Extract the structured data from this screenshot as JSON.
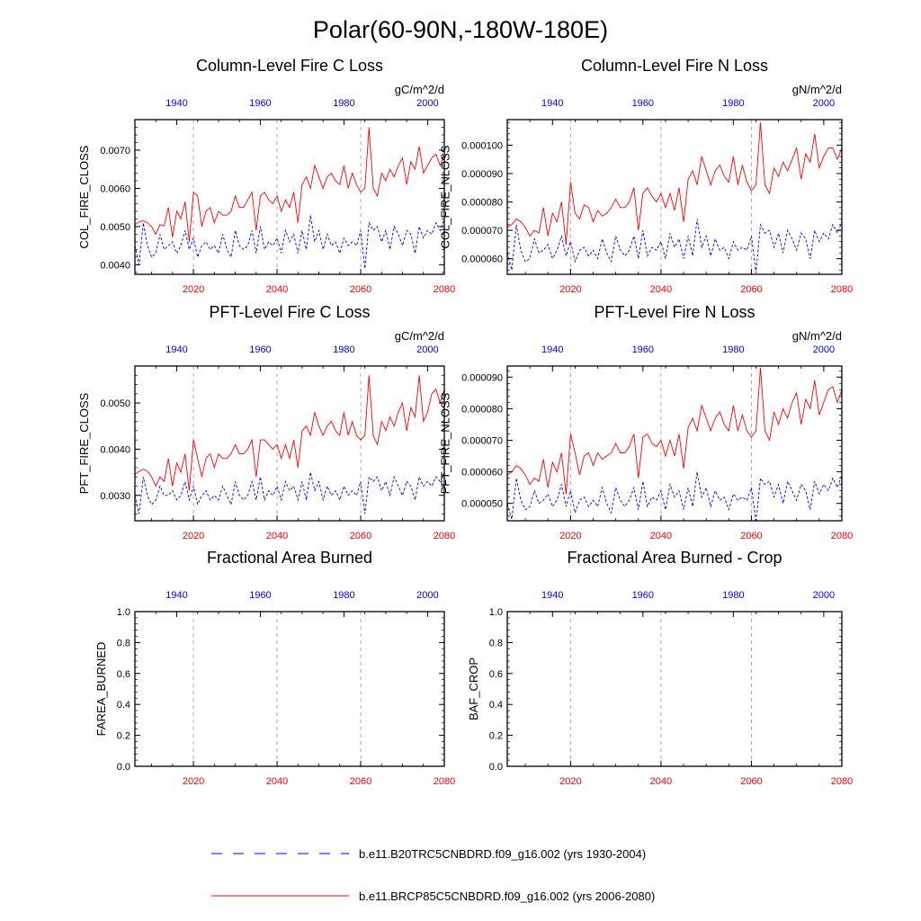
{
  "figure_title": "Polar(60-90N,-180W-180E)",
  "colors": {
    "control": "#0000ff",
    "future": "#ff0000",
    "axis": "#000000",
    "grid": "#aaaaaa"
  },
  "legend": [
    {
      "label": "b.e11.B20TRC5CNBDRD.f09_g16.002 (yrs 1930-2004)",
      "color": "#0000ff",
      "style": "dashed"
    },
    {
      "label": "b.e11.BRCP85C5CNBDRD.f09_g16.002 (yrs 2006-2080)",
      "color": "#ff0000",
      "style": "solid"
    }
  ],
  "chart_data": [
    {
      "type": "line",
      "title": "Column-Level Fire C Loss",
      "ylabel": "COL_FIRE_CLOSS",
      "units": "gC/m^2/d",
      "ylim": [
        0.00375,
        0.0078
      ],
      "yticks": [
        0.004,
        0.005,
        0.006,
        0.007
      ],
      "ytick_labels": [
        "0.0040",
        "0.0050",
        "0.0060",
        "0.0070"
      ],
      "bottom_axis": {
        "xlim": [
          2006,
          2080
        ],
        "ticks": [
          2020,
          2040,
          2060,
          2080
        ],
        "color": "#ff0000"
      },
      "top_axis": {
        "xlim": [
          1930,
          2004
        ],
        "ticks": [
          1940,
          1960,
          1980,
          2000
        ],
        "color": "#0000ff"
      },
      "series": [
        {
          "x_start": 2006,
          "color": "#ff0000",
          "dash": "solid",
          "values": [
            0.00505,
            0.00512,
            0.00515,
            0.0051,
            0.005,
            0.0048,
            0.00505,
            0.00502,
            0.0055,
            0.00472,
            0.0054,
            0.0052,
            0.00565,
            0.0046,
            0.0059,
            0.0058,
            0.005,
            0.0054,
            0.0055,
            0.0051,
            0.0054,
            0.0053,
            0.0053,
            0.0054,
            0.0058,
            0.0055,
            0.0055,
            0.0057,
            0.0059,
            0.0049,
            0.0058,
            0.0059,
            0.0057,
            0.0056,
            0.0058,
            0.0054,
            0.0057,
            0.0055,
            0.0059,
            0.0051,
            0.0061,
            0.0063,
            0.006,
            0.0066,
            0.0063,
            0.006,
            0.0063,
            0.0064,
            0.0062,
            0.0061,
            0.0066,
            0.006,
            0.0064,
            0.0061,
            0.0059,
            0.006,
            0.0076,
            0.006,
            0.0058,
            0.0064,
            0.0062,
            0.0065,
            0.0063,
            0.0066,
            0.0068,
            0.0061,
            0.0067,
            0.0065,
            0.0071,
            0.0064,
            0.0066,
            0.0068,
            0.0069,
            0.0066,
            0.0069
          ]
        },
        {
          "x_start": 1930,
          "color": "#0000ff",
          "dash": "dashed",
          "values": [
            0.0045,
            0.004,
            0.0051,
            0.0045,
            0.0042,
            0.0043,
            0.0048,
            0.0044,
            0.0045,
            0.0046,
            0.0043,
            0.0045,
            0.0049,
            0.0044,
            0.0047,
            0.0042,
            0.0045,
            0.0046,
            0.0044,
            0.0045,
            0.0043,
            0.0048,
            0.0044,
            0.0042,
            0.0049,
            0.0045,
            0.0044,
            0.0045,
            0.0049,
            0.0043,
            0.005,
            0.0044,
            0.0046,
            0.0045,
            0.0047,
            0.0043,
            0.0049,
            0.0046,
            0.0048,
            0.0043,
            0.0049,
            0.0044,
            0.0053,
            0.0046,
            0.0049,
            0.0044,
            0.0048,
            0.0045,
            0.0046,
            0.0043,
            0.0047,
            0.0045,
            0.0046,
            0.0045,
            0.0049,
            0.0039,
            0.0051,
            0.0049,
            0.005,
            0.0046,
            0.0049,
            0.0044,
            0.005,
            0.0048,
            0.0045,
            0.0049,
            0.0048,
            0.0043,
            0.005,
            0.0047,
            0.0049,
            0.0048,
            0.0051,
            0.0049,
            0.0052
          ]
        }
      ]
    },
    {
      "type": "line",
      "title": "Column-Level Fire N Loss",
      "ylabel": "COL_FIRE_NLOSS",
      "units": "gN/m^2/d",
      "ylim": [
        5.45e-05,
        0.000109
      ],
      "yticks": [
        6e-05,
        7e-05,
        8e-05,
        9e-05,
        0.0001
      ],
      "ytick_labels": [
        "0.000060",
        "0.000070",
        "0.000080",
        "0.000090",
        "0.000100"
      ],
      "bottom_axis": {
        "xlim": [
          2006,
          2080
        ],
        "ticks": [
          2020,
          2040,
          2060,
          2080
        ],
        "color": "#ff0000"
      },
      "top_axis": {
        "xlim": [
          1930,
          2004
        ],
        "ticks": [
          1940,
          1960,
          1980,
          2000
        ],
        "color": "#0000ff"
      },
      "series": [
        {
          "x_start": 2006,
          "color": "#ff0000",
          "dash": "solid",
          "values": [
            7.1e-05,
            7.2e-05,
            7.4e-05,
            7.3e-05,
            7.1e-05,
            6.8e-05,
            7e-05,
            6.9e-05,
            7.8e-05,
            6.8e-05,
            7.6e-05,
            7.3e-05,
            8e-05,
            6.5e-05,
            8.7e-05,
            7.6e-05,
            7.4e-05,
            7.9e-05,
            7.8e-05,
            7.3e-05,
            7.7e-05,
            7.5e-05,
            7.6e-05,
            7.8e-05,
            8.1e-05,
            7.8e-05,
            7.8e-05,
            8e-05,
            8.5e-05,
            7e-05,
            8.3e-05,
            8.5e-05,
            8.2e-05,
            8e-05,
            8.3e-05,
            7.8e-05,
            8.3e-05,
            7.7e-05,
            8.5e-05,
            7.3e-05,
            8.8e-05,
            9.1e-05,
            8.6e-05,
            9.6e-05,
            9.1e-05,
            8.6e-05,
            9.1e-05,
            9.3e-05,
            8.9e-05,
            8.7e-05,
            9.6e-05,
            8.6e-05,
            9.3e-05,
            8.7e-05,
            8.4e-05,
            8.6e-05,
            0.000108,
            8.6e-05,
            8.3e-05,
            9.2e-05,
            8.9e-05,
            9.4e-05,
            9.1e-05,
            9.5e-05,
            9.9e-05,
            8.8e-05,
            9.7e-05,
            9.4e-05,
            0.000104,
            9.2e-05,
            9.6e-05,
            9.9e-05,
            9.9e-05,
            9.5e-05,
            9.9e-05
          ]
        },
        {
          "x_start": 1930,
          "color": "#0000ff",
          "dash": "dashed",
          "values": [
            6.2e-05,
            5.6e-05,
            7.2e-05,
            6.3e-05,
            5.9e-05,
            6e-05,
            6.7e-05,
            6.2e-05,
            6.3e-05,
            6.5e-05,
            6e-05,
            6.3e-05,
            6.8e-05,
            6.1e-05,
            6.6e-05,
            5.9e-05,
            6.3e-05,
            6.4e-05,
            6.1e-05,
            6.3e-05,
            6e-05,
            6.7e-05,
            6.2e-05,
            5.9e-05,
            6.8e-05,
            6.3e-05,
            6.1e-05,
            6.3e-05,
            6.8e-05,
            6e-05,
            7e-05,
            6.1e-05,
            6.4e-05,
            6.3e-05,
            6.6e-05,
            6e-05,
            6.9e-05,
            6.4e-05,
            6.7e-05,
            6e-05,
            6.8e-05,
            6.1e-05,
            7.4e-05,
            6.4e-05,
            6.8e-05,
            6.1e-05,
            6.7e-05,
            6.3e-05,
            6.4e-05,
            6e-05,
            6.6e-05,
            6.3e-05,
            6.4e-05,
            6.3e-05,
            6.8e-05,
            5.5e-05,
            7.2e-05,
            6.9e-05,
            7e-05,
            6.4e-05,
            6.9e-05,
            6.2e-05,
            7e-05,
            6.7e-05,
            6.3e-05,
            6.9e-05,
            6.7e-05,
            6e-05,
            7e-05,
            6.6e-05,
            6.9e-05,
            6.7e-05,
            7.2e-05,
            6.9e-05,
            7.3e-05
          ]
        }
      ]
    },
    {
      "type": "line",
      "title": "PFT-Level Fire C Loss",
      "ylabel": "PFT_FIRE_CLOSS",
      "units": "gC/m^2/d",
      "ylim": [
        0.00245,
        0.0058
      ],
      "yticks": [
        0.003,
        0.004,
        0.005
      ],
      "ytick_labels": [
        "0.0030",
        "0.0040",
        "0.0050"
      ],
      "bottom_axis": {
        "xlim": [
          2006,
          2080
        ],
        "ticks": [
          2020,
          2040,
          2060,
          2080
        ],
        "color": "#ff0000"
      },
      "top_axis": {
        "xlim": [
          1930,
          2004
        ],
        "ticks": [
          1940,
          1960,
          1980,
          2000
        ],
        "color": "#0000ff"
      },
      "series": [
        {
          "x_start": 2006,
          "color": "#ff0000",
          "dash": "solid",
          "values": [
            0.00345,
            0.00352,
            0.00357,
            0.00352,
            0.0034,
            0.0032,
            0.0034,
            0.0033,
            0.0038,
            0.0032,
            0.0037,
            0.0035,
            0.0039,
            0.0031,
            0.0042,
            0.0038,
            0.0034,
            0.0038,
            0.0039,
            0.0036,
            0.0039,
            0.0038,
            0.0038,
            0.0039,
            0.0041,
            0.0039,
            0.0039,
            0.004,
            0.0042,
            0.0034,
            0.0042,
            0.0042,
            0.0041,
            0.004,
            0.0041,
            0.0038,
            0.0041,
            0.0038,
            0.0042,
            0.0036,
            0.0044,
            0.0045,
            0.0043,
            0.0048,
            0.0045,
            0.0043,
            0.0045,
            0.0046,
            0.0044,
            0.0043,
            0.0048,
            0.0043,
            0.0046,
            0.0043,
            0.0042,
            0.0043,
            0.0056,
            0.0043,
            0.0041,
            0.0046,
            0.0044,
            0.0047,
            0.0045,
            0.0048,
            0.005,
            0.0044,
            0.0049,
            0.0047,
            0.0056,
            0.0046,
            0.0048,
            0.0052,
            0.0053,
            0.005,
            0.0053
          ]
        },
        {
          "x_start": 1930,
          "color": "#0000ff",
          "dash": "dashed",
          "values": [
            0.003,
            0.0026,
            0.0034,
            0.003,
            0.0028,
            0.0029,
            0.0032,
            0.003,
            0.003,
            0.0031,
            0.0029,
            0.003,
            0.0033,
            0.0029,
            0.0032,
            0.0028,
            0.003,
            0.0031,
            0.0029,
            0.003,
            0.0029,
            0.0032,
            0.003,
            0.0028,
            0.0033,
            0.003,
            0.0029,
            0.003,
            0.0033,
            0.0029,
            0.0034,
            0.0029,
            0.0031,
            0.003,
            0.0032,
            0.0029,
            0.0033,
            0.0031,
            0.0032,
            0.0029,
            0.0033,
            0.0029,
            0.0035,
            0.0031,
            0.0033,
            0.0029,
            0.0032,
            0.003,
            0.0031,
            0.0029,
            0.0032,
            0.003,
            0.0031,
            0.003,
            0.0033,
            0.0026,
            0.0034,
            0.0033,
            0.0034,
            0.0031,
            0.0033,
            0.003,
            0.0034,
            0.0032,
            0.003,
            0.0033,
            0.0032,
            0.0029,
            0.0034,
            0.0032,
            0.0033,
            0.0032,
            0.0034,
            0.0033,
            0.0035
          ]
        }
      ]
    },
    {
      "type": "line",
      "title": "PFT-Level Fire N Loss",
      "ylabel": "PFT_FIRE_NLOSS",
      "units": "gN/m^2/d",
      "ylim": [
        4.45e-05,
        9.35e-05
      ],
      "yticks": [
        5e-05,
        6e-05,
        7e-05,
        8e-05,
        9e-05
      ],
      "ytick_labels": [
        "0.000050",
        "0.000060",
        "0.000070",
        "0.000080",
        "0.000090"
      ],
      "bottom_axis": {
        "xlim": [
          2006,
          2080
        ],
        "ticks": [
          2020,
          2040,
          2060,
          2080
        ],
        "color": "#ff0000"
      },
      "top_axis": {
        "xlim": [
          1930,
          2004
        ],
        "ticks": [
          1940,
          1960,
          1980,
          2000
        ],
        "color": "#0000ff"
      },
      "series": [
        {
          "x_start": 2006,
          "color": "#ff0000",
          "dash": "solid",
          "values": [
            5.9e-05,
            6e-05,
            6.2e-05,
            6.1e-05,
            5.9e-05,
            5.6e-05,
            5.8e-05,
            5.7e-05,
            6.4e-05,
            5.5e-05,
            6.3e-05,
            6e-05,
            6.6e-05,
            5.3e-05,
            7.2e-05,
            6.6e-05,
            5.9e-05,
            6.5e-05,
            6.6e-05,
            6.2e-05,
            6.6e-05,
            6.4e-05,
            6.5e-05,
            6.6e-05,
            6.9e-05,
            6.6e-05,
            6.6e-05,
            6.8e-05,
            7.2e-05,
            5.8e-05,
            7.1e-05,
            7.2e-05,
            6.9e-05,
            6.8e-05,
            7e-05,
            6.5e-05,
            7e-05,
            6.5e-05,
            7.2e-05,
            6.1e-05,
            7.4e-05,
            7.7e-05,
            7.3e-05,
            8.1e-05,
            7.7e-05,
            7.3e-05,
            7.7e-05,
            7.9e-05,
            7.5e-05,
            7.3e-05,
            8.1e-05,
            7.3e-05,
            7.8e-05,
            7.3e-05,
            7.1e-05,
            7.3e-05,
            9.3e-05,
            7.3e-05,
            7e-05,
            7.9e-05,
            7.5e-05,
            8e-05,
            7.7e-05,
            8.2e-05,
            8.5e-05,
            7.5e-05,
            8.3e-05,
            8e-05,
            8.9e-05,
            7.8e-05,
            8.2e-05,
            8.6e-05,
            8.7e-05,
            8.2e-05,
            8.6e-05
          ]
        },
        {
          "x_start": 1930,
          "color": "#0000ff",
          "dash": "dashed",
          "values": [
            5e-05,
            4.5e-05,
            5.8e-05,
            5.1e-05,
            4.8e-05,
            4.9e-05,
            5.4e-05,
            5e-05,
            5.1e-05,
            5.3e-05,
            4.9e-05,
            5.1e-05,
            5.6e-05,
            4.9e-05,
            5.4e-05,
            4.7e-05,
            5.1e-05,
            5.2e-05,
            4.9e-05,
            5.1e-05,
            4.9e-05,
            5.5e-05,
            5e-05,
            4.7e-05,
            5.5e-05,
            5.1e-05,
            4.9e-05,
            5.1e-05,
            5.5e-05,
            4.8e-05,
            5.7e-05,
            4.9e-05,
            5.2e-05,
            5.1e-05,
            5.4e-05,
            4.8e-05,
            5.6e-05,
            5.2e-05,
            5.4e-05,
            4.8e-05,
            5.5e-05,
            4.9e-05,
            6e-05,
            5.2e-05,
            5.5e-05,
            4.9e-05,
            5.4e-05,
            5.1e-05,
            5.2e-05,
            4.8e-05,
            5.3e-05,
            5.1e-05,
            5.2e-05,
            5.1e-05,
            5.5e-05,
            4.4e-05,
            5.8e-05,
            5.6e-05,
            5.7e-05,
            5.2e-05,
            5.6e-05,
            5e-05,
            5.7e-05,
            5.4e-05,
            5.1e-05,
            5.6e-05,
            5.4e-05,
            4.8e-05,
            5.7e-05,
            5.3e-05,
            5.6e-05,
            5.4e-05,
            5.8e-05,
            5.5e-05,
            5.9e-05
          ]
        }
      ]
    },
    {
      "type": "line",
      "title": "Fractional Area Burned",
      "ylabel": "FAREA_BURNED",
      "units": "",
      "ylim": [
        0,
        1
      ],
      "yticks": [
        0,
        0.2,
        0.4,
        0.6,
        0.8,
        1.0
      ],
      "ytick_labels": [
        "0.0",
        "0.2",
        "0.4",
        "0.6",
        "0.8",
        "1.0"
      ],
      "bottom_axis": {
        "xlim": [
          2006,
          2080
        ],
        "ticks": [
          2020,
          2040,
          2060,
          2080
        ],
        "color": "#ff0000"
      },
      "top_axis": {
        "xlim": [
          1930,
          2004
        ],
        "ticks": [
          1940,
          1960,
          1980,
          2000
        ],
        "color": "#0000ff"
      },
      "series": []
    },
    {
      "type": "line",
      "title": "Fractional Area Burned - Crop",
      "ylabel": "BAF_CROP",
      "units": "",
      "ylim": [
        0,
        1
      ],
      "yticks": [
        0,
        0.2,
        0.4,
        0.6,
        0.8,
        1.0
      ],
      "ytick_labels": [
        "0.0",
        "0.2",
        "0.4",
        "0.6",
        "0.8",
        "1.0"
      ],
      "bottom_axis": {
        "xlim": [
          2006,
          2080
        ],
        "ticks": [
          2020,
          2040,
          2060,
          2080
        ],
        "color": "#ff0000"
      },
      "top_axis": {
        "xlim": [
          1930,
          2004
        ],
        "ticks": [
          1940,
          1960,
          1980,
          2000
        ],
        "color": "#0000ff"
      },
      "series": []
    }
  ]
}
